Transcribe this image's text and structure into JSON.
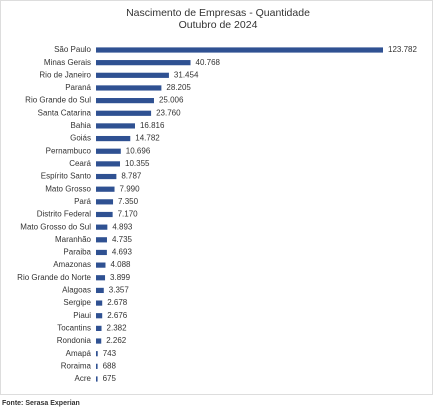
{
  "chart_data": {
    "type": "bar",
    "orientation": "horizontal",
    "title": "Nascimento de Empresas - Quantidade",
    "subtitle": "Outubro de 2024",
    "source": "Fonte: Serasa Experian",
    "color": "#2f5192",
    "categories": [
      "São Paulo",
      "Minas Gerais",
      "Rio de Janeiro",
      "Paraná",
      "Rio Grande do Sul",
      "Santa Catarina",
      "Bahia",
      "Goiás",
      "Pernambuco",
      "Ceará",
      "Espírito Santo",
      "Mato Grosso",
      "Pará",
      "Distrito Federal",
      "Mato Grosso do Sul",
      "Maranhão",
      "Paraiba",
      "Amazonas",
      "Rio Grande do Norte",
      "Alagoas",
      "Sergipe",
      "Piaui",
      "Tocantins",
      "Rondonia",
      "Amapá",
      "Roraima",
      "Acre"
    ],
    "values": [
      123782,
      40768,
      31454,
      28205,
      25006,
      23760,
      16816,
      14782,
      10696,
      10355,
      8787,
      7990,
      7350,
      7170,
      4893,
      4735,
      4693,
      4088,
      3899,
      3357,
      2678,
      2676,
      2382,
      2262,
      743,
      688,
      675
    ],
    "value_labels": [
      "123.782",
      "40.768",
      "31.454",
      "28.205",
      "25.006",
      "23.760",
      "16.816",
      "14.782",
      "10.696",
      "10.355",
      "8.787",
      "7.990",
      "7.350",
      "7.170",
      "4.893",
      "4.735",
      "4.693",
      "4.088",
      "3.899",
      "3.357",
      "2.678",
      "2.676",
      "2.382",
      "2.262",
      "743",
      "688",
      "675"
    ]
  }
}
